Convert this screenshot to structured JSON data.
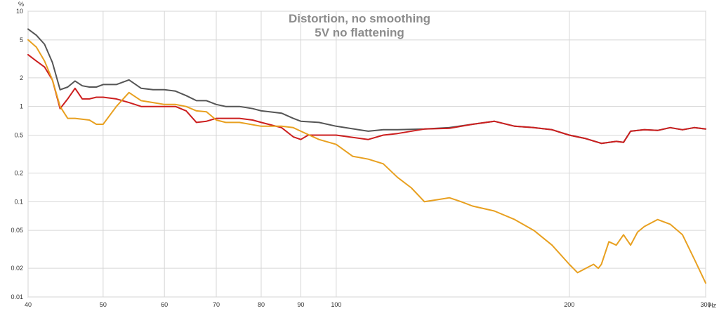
{
  "chart_data": {
    "type": "line",
    "title": "Distortion, no smoothing",
    "subtitle": "5V no flattening",
    "y_unit": "%",
    "x_unit": "Hz",
    "x_scale": "log",
    "y_scale": "log",
    "xlim": [
      40,
      300
    ],
    "ylim": [
      0.01,
      10
    ],
    "grid": true,
    "x_ticks": [
      {
        "value": 40,
        "label": "40"
      },
      {
        "value": 50,
        "label": "50"
      },
      {
        "value": 60,
        "label": "60"
      },
      {
        "value": 70,
        "label": "70"
      },
      {
        "value": 80,
        "label": "80"
      },
      {
        "value": 90,
        "label": "90"
      },
      {
        "value": 100,
        "label": "100"
      },
      {
        "value": 200,
        "label": "200"
      },
      {
        "value": 300,
        "label": "300"
      }
    ],
    "y_ticks": [
      {
        "value": 10,
        "label": "10"
      },
      {
        "value": 5,
        "label": "5"
      },
      {
        "value": 2,
        "label": "2"
      },
      {
        "value": 1,
        "label": "1"
      },
      {
        "value": 0.5,
        "label": "0.5"
      },
      {
        "value": 0.2,
        "label": "0.2"
      },
      {
        "value": 0.1,
        "label": "0.1"
      },
      {
        "value": 0.05,
        "label": "0.05"
      },
      {
        "value": 0.02,
        "label": "0.02"
      },
      {
        "value": 0.01,
        "label": "0.01"
      }
    ],
    "series": [
      {
        "color": "#555555",
        "points": [
          [
            40,
            6.5
          ],
          [
            41,
            5.6
          ],
          [
            42,
            4.5
          ],
          [
            43,
            2.9
          ],
          [
            44,
            1.5
          ],
          [
            45,
            1.6
          ],
          [
            46,
            1.85
          ],
          [
            47,
            1.65
          ],
          [
            48,
            1.6
          ],
          [
            49,
            1.6
          ],
          [
            50,
            1.7
          ],
          [
            52,
            1.7
          ],
          [
            54,
            1.9
          ],
          [
            56,
            1.55
          ],
          [
            58,
            1.5
          ],
          [
            60,
            1.5
          ],
          [
            62,
            1.45
          ],
          [
            64,
            1.3
          ],
          [
            66,
            1.15
          ],
          [
            68,
            1.15
          ],
          [
            70,
            1.05
          ],
          [
            72,
            1.0
          ],
          [
            75,
            1.0
          ],
          [
            78,
            0.95
          ],
          [
            80,
            0.9
          ],
          [
            85,
            0.85
          ],
          [
            88,
            0.75
          ],
          [
            90,
            0.7
          ],
          [
            95,
            0.68
          ],
          [
            100,
            0.62
          ],
          [
            110,
            0.55
          ],
          [
            115,
            0.57
          ],
          [
            120,
            0.57
          ],
          [
            130,
            0.58
          ],
          [
            140,
            0.6
          ],
          [
            150,
            0.65
          ],
          [
            160,
            0.7
          ],
          [
            170,
            0.62
          ],
          [
            180,
            0.6
          ],
          [
            190,
            0.57
          ],
          [
            200,
            0.5
          ],
          [
            210,
            0.46
          ],
          [
            220,
            0.41
          ],
          [
            230,
            0.43
          ],
          [
            235,
            0.42
          ],
          [
            240,
            0.55
          ],
          [
            250,
            0.57
          ],
          [
            260,
            0.56
          ],
          [
            270,
            0.6
          ],
          [
            280,
            0.57
          ],
          [
            290,
            0.6
          ],
          [
            300,
            0.58
          ]
        ]
      },
      {
        "color": "#cc1f1f",
        "points": [
          [
            40,
            3.5
          ],
          [
            41,
            3.0
          ],
          [
            42,
            2.6
          ],
          [
            43,
            1.9
          ],
          [
            44,
            0.95
          ],
          [
            45,
            1.2
          ],
          [
            46,
            1.55
          ],
          [
            47,
            1.2
          ],
          [
            48,
            1.2
          ],
          [
            49,
            1.25
          ],
          [
            50,
            1.25
          ],
          [
            52,
            1.2
          ],
          [
            54,
            1.1
          ],
          [
            56,
            1.0
          ],
          [
            58,
            1.0
          ],
          [
            60,
            1.0
          ],
          [
            62,
            1.0
          ],
          [
            64,
            0.9
          ],
          [
            66,
            0.68
          ],
          [
            68,
            0.7
          ],
          [
            70,
            0.75
          ],
          [
            72,
            0.75
          ],
          [
            75,
            0.75
          ],
          [
            78,
            0.72
          ],
          [
            80,
            0.68
          ],
          [
            85,
            0.6
          ],
          [
            88,
            0.48
          ],
          [
            90,
            0.45
          ],
          [
            92,
            0.5
          ],
          [
            95,
            0.5
          ],
          [
            100,
            0.5
          ],
          [
            110,
            0.45
          ],
          [
            115,
            0.5
          ],
          [
            120,
            0.52
          ],
          [
            130,
            0.58
          ],
          [
            140,
            0.59
          ],
          [
            150,
            0.65
          ],
          [
            160,
            0.7
          ],
          [
            170,
            0.62
          ],
          [
            180,
            0.6
          ],
          [
            190,
            0.57
          ],
          [
            200,
            0.5
          ],
          [
            210,
            0.46
          ],
          [
            220,
            0.41
          ],
          [
            230,
            0.43
          ],
          [
            235,
            0.42
          ],
          [
            240,
            0.55
          ],
          [
            250,
            0.57
          ],
          [
            260,
            0.56
          ],
          [
            270,
            0.6
          ],
          [
            280,
            0.57
          ],
          [
            290,
            0.6
          ],
          [
            300,
            0.58
          ]
        ]
      },
      {
        "color": "#e8a020",
        "points": [
          [
            40,
            5.0
          ],
          [
            41,
            4.2
          ],
          [
            42,
            3.0
          ],
          [
            43,
            1.9
          ],
          [
            44,
            1.0
          ],
          [
            45,
            0.75
          ],
          [
            46,
            0.75
          ],
          [
            48,
            0.72
          ],
          [
            49,
            0.65
          ],
          [
            50,
            0.65
          ],
          [
            52,
            1.0
          ],
          [
            54,
            1.4
          ],
          [
            56,
            1.15
          ],
          [
            58,
            1.1
          ],
          [
            60,
            1.05
          ],
          [
            62,
            1.05
          ],
          [
            64,
            1.0
          ],
          [
            66,
            0.9
          ],
          [
            68,
            0.88
          ],
          [
            70,
            0.72
          ],
          [
            72,
            0.68
          ],
          [
            75,
            0.68
          ],
          [
            80,
            0.62
          ],
          [
            85,
            0.62
          ],
          [
            88,
            0.6
          ],
          [
            90,
            0.55
          ],
          [
            95,
            0.45
          ],
          [
            100,
            0.4
          ],
          [
            105,
            0.3
          ],
          [
            110,
            0.28
          ],
          [
            115,
            0.25
          ],
          [
            120,
            0.18
          ],
          [
            125,
            0.14
          ],
          [
            130,
            0.1
          ],
          [
            135,
            0.105
          ],
          [
            140,
            0.11
          ],
          [
            145,
            0.1
          ],
          [
            150,
            0.09
          ],
          [
            160,
            0.08
          ],
          [
            170,
            0.065
          ],
          [
            180,
            0.05
          ],
          [
            190,
            0.035
          ],
          [
            200,
            0.022
          ],
          [
            205,
            0.018
          ],
          [
            210,
            0.02
          ],
          [
            215,
            0.022
          ],
          [
            218,
            0.02
          ],
          [
            220,
            0.022
          ],
          [
            225,
            0.038
          ],
          [
            230,
            0.035
          ],
          [
            235,
            0.045
          ],
          [
            240,
            0.035
          ],
          [
            245,
            0.048
          ],
          [
            250,
            0.055
          ],
          [
            260,
            0.065
          ],
          [
            270,
            0.058
          ],
          [
            280,
            0.045
          ],
          [
            290,
            0.025
          ],
          [
            300,
            0.014
          ]
        ]
      }
    ]
  }
}
